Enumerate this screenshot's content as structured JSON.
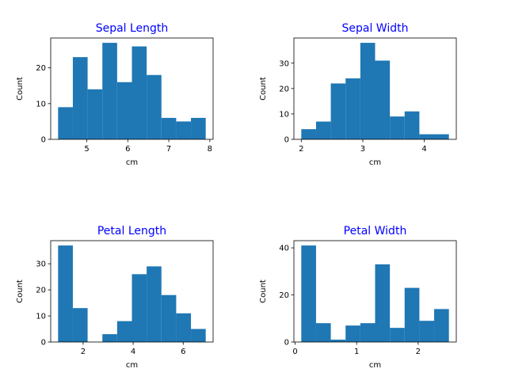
{
  "chart_data": [
    {
      "type": "histogram",
      "title": "Sepal Length",
      "title_color": "blue",
      "xlabel": "cm",
      "ylabel": "Count",
      "color": "#1f77b4",
      "bins": [
        4.3,
        4.66,
        5.02,
        5.38,
        5.74,
        6.1,
        6.46,
        6.82,
        7.18,
        7.54,
        7.9
      ],
      "values": [
        9,
        23,
        14,
        27,
        16,
        26,
        18,
        6,
        5,
        6
      ],
      "xlim": [
        4.12,
        8.08
      ],
      "ylim": [
        0,
        28.35
      ],
      "xticks": [
        5,
        6,
        7,
        8
      ],
      "yticks": [
        0,
        10,
        20
      ]
    },
    {
      "type": "histogram",
      "title": "Sepal Width",
      "title_color": "blue",
      "xlabel": "cm",
      "ylabel": "Count",
      "color": "#1f77b4",
      "bins": [
        2.0,
        2.24,
        2.48,
        2.72,
        2.96,
        3.2,
        3.44,
        3.68,
        3.92,
        4.16,
        4.4
      ],
      "values": [
        4,
        7,
        22,
        24,
        38,
        31,
        9,
        11,
        2,
        2
      ],
      "xlim": [
        1.88,
        4.52
      ],
      "ylim": [
        0,
        39.9
      ],
      "xticks": [
        2,
        3,
        4
      ],
      "yticks": [
        0,
        10,
        20,
        30
      ]
    },
    {
      "type": "histogram",
      "title": "Petal Length",
      "title_color": "blue",
      "xlabel": "cm",
      "ylabel": "Count",
      "color": "#1f77b4",
      "bins": [
        1.0,
        1.59,
        2.18,
        2.77,
        3.36,
        3.95,
        4.54,
        5.13,
        5.72,
        6.31,
        6.9
      ],
      "values": [
        37,
        13,
        0,
        3,
        8,
        26,
        29,
        18,
        11,
        5
      ],
      "xlim": [
        0.705,
        7.195
      ],
      "ylim": [
        0,
        38.85
      ],
      "xticks": [
        2,
        4,
        6
      ],
      "yticks": [
        0,
        10,
        20,
        30
      ]
    },
    {
      "type": "histogram",
      "title": "Petal Width",
      "title_color": "blue",
      "xlabel": "cm",
      "ylabel": "Count",
      "color": "#1f77b4",
      "bins": [
        0.1,
        0.34,
        0.58,
        0.82,
        1.06,
        1.3,
        1.54,
        1.78,
        2.02,
        2.26,
        2.5
      ],
      "values": [
        41,
        8,
        1,
        7,
        8,
        33,
        6,
        23,
        9,
        14
      ],
      "xlim": [
        -0.02,
        2.62
      ],
      "ylim": [
        0,
        43.05
      ],
      "xticks": [
        0,
        1,
        2
      ],
      "yticks": [
        0,
        20,
        40
      ]
    }
  ]
}
